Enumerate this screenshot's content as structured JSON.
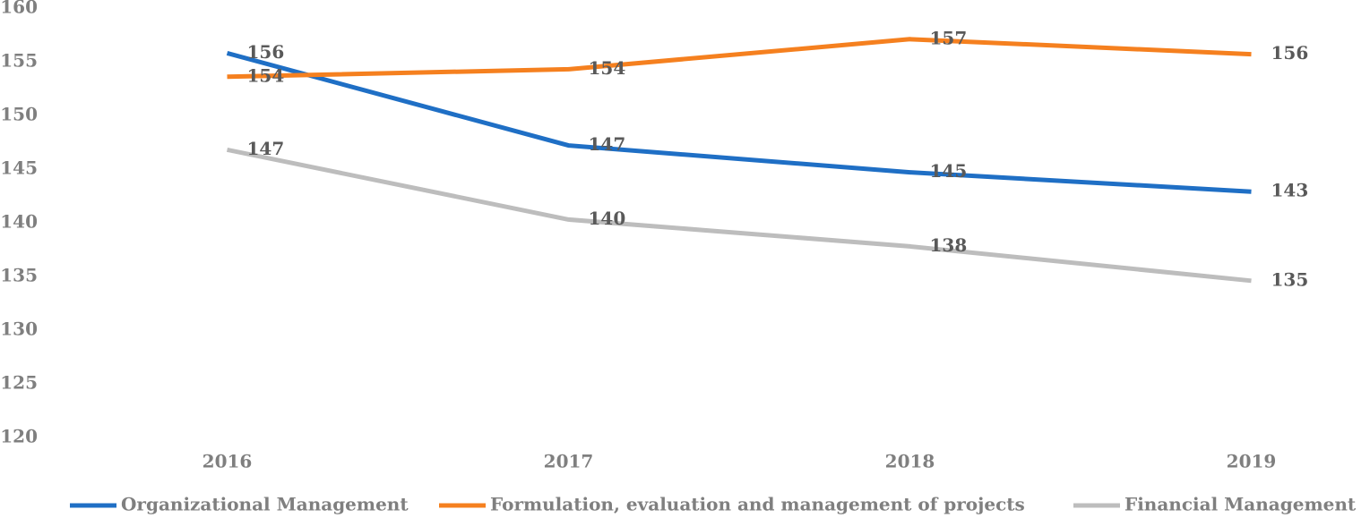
{
  "chart_data": {
    "type": "line",
    "categories": [
      "2016",
      "2017",
      "2018",
      "2019"
    ],
    "series": [
      {
        "name": "Organizational Management",
        "color": "#1f6fc5",
        "values": [
          155.8,
          147.2,
          144.7,
          142.9
        ],
        "value_labels": [
          "156",
          "147",
          "145",
          "143"
        ]
      },
      {
        "name": "Formulation, evaluation and management of projects",
        "color": "#f5801f",
        "values": [
          153.6,
          154.3,
          157.1,
          155.7
        ],
        "value_labels": [
          "154",
          "154",
          "157",
          "156"
        ]
      },
      {
        "name": "Financial Management",
        "color": "#bdbdbd",
        "values": [
          146.8,
          140.3,
          137.8,
          134.6
        ],
        "value_labels": [
          "147",
          "140",
          "138",
          "135"
        ]
      }
    ],
    "ylim": [
      120,
      160
    ],
    "yticks": [
      120,
      125,
      130,
      135,
      140,
      145,
      150,
      155,
      160
    ],
    "grid": false,
    "legend": "bottom"
  }
}
